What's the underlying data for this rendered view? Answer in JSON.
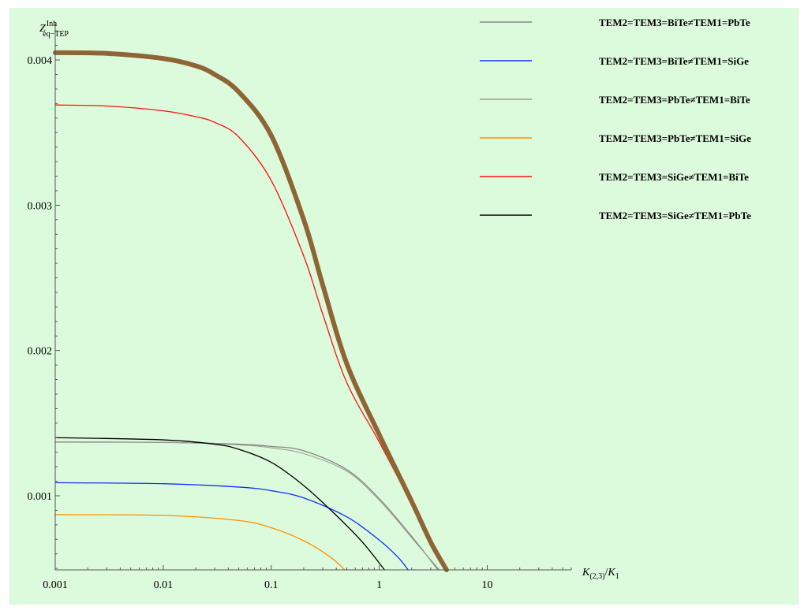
{
  "chart_data": {
    "type": "line",
    "xscale": "log",
    "xlim": [
      0.001,
      60
    ],
    "ylim": [
      0.00049,
      0.00425
    ],
    "xticks": [
      {
        "value": 0.001,
        "label": "0.001"
      },
      {
        "value": 0.01,
        "label": "0.01"
      },
      {
        "value": 0.1,
        "label": "0.1"
      },
      {
        "value": 1,
        "label": "1"
      },
      {
        "value": 10,
        "label": "10"
      }
    ],
    "yticks": [
      {
        "value": 0.001,
        "label": "0.001"
      },
      {
        "value": 0.002,
        "label": "0.002"
      },
      {
        "value": 0.003,
        "label": "0.003"
      },
      {
        "value": 0.004,
        "label": "0.004"
      }
    ],
    "xlabel": {
      "main": "K",
      "sub": "(2,3)",
      "sep": "/",
      "main2": "K",
      "sub2": "1"
    },
    "ylabel": {
      "main": "Z",
      "sup": "Inh",
      "sub": "eq−TEP"
    },
    "grid": false,
    "legend_position": "top-right",
    "series": [
      {
        "name": "TEM2=TEM3=BiTe≠TEM1=PbTe",
        "color": "#858585",
        "width": 1.3,
        "x": [
          0.001,
          0.01,
          0.05,
          0.1,
          0.2,
          0.5,
          1,
          2,
          3.5
        ],
        "y": [
          0.00137,
          0.001367,
          0.001355,
          0.00134,
          0.00131,
          0.00118,
          0.00098,
          0.00072,
          0.00049
        ]
      },
      {
        "name": "TEM2=TEM3=BiTe≠TEM1=SiGe",
        "color": "#1030ff",
        "width": 1.3,
        "x": [
          0.001,
          0.01,
          0.05,
          0.1,
          0.2,
          0.5,
          1,
          1.5,
          1.85
        ],
        "y": [
          0.00109,
          0.001083,
          0.00106,
          0.001035,
          0.000985,
          0.000855,
          0.000695,
          0.000575,
          0.00049
        ]
      },
      {
        "name": "TEM2=TEM3=PbTe≠TEM1=BiTe",
        "color": "#9a9a8c",
        "width": 1.0,
        "x": [
          0.001,
          0.01,
          0.05,
          0.1,
          0.2,
          0.5,
          1,
          2,
          3.6
        ],
        "y": [
          0.001372,
          0.001368,
          0.00135,
          0.00133,
          0.00129,
          0.00117,
          0.00097,
          0.00071,
          0.00049
        ]
      },
      {
        "name": "TEM2=TEM3=PbTe≠TEM1=SiGe",
        "color": "#ff9000",
        "width": 1.3,
        "x": [
          0.001,
          0.01,
          0.05,
          0.1,
          0.2,
          0.35,
          0.48
        ],
        "y": [
          0.00087,
          0.000865,
          0.00083,
          0.00078,
          0.00069,
          0.00058,
          0.00049
        ]
      },
      {
        "name": "TEM2=TEM3=SiGe≠TEM1=BiTe",
        "color": "#ff1010",
        "width": 1.3,
        "x": [
          0.001,
          0.003,
          0.01,
          0.02,
          0.03,
          0.05,
          0.1,
          0.2,
          0.3,
          0.5,
          1,
          2,
          3,
          4.1
        ],
        "y": [
          0.00369,
          0.003683,
          0.00365,
          0.00361,
          0.00357,
          0.00347,
          0.00317,
          0.00265,
          0.00225,
          0.00178,
          0.00137,
          0.00094,
          0.00066,
          0.00049
        ]
      },
      {
        "name": "TEM2=TEM3=SiGe≠TEM1=PbTe",
        "color": "#000000",
        "width": 1.3,
        "x": [
          0.001,
          0.01,
          0.03,
          0.05,
          0.1,
          0.2,
          0.4,
          0.7,
          1.12
        ],
        "y": [
          0.0014,
          0.001385,
          0.001355,
          0.00132,
          0.00123,
          0.00107,
          0.000865,
          0.00068,
          0.00049
        ]
      },
      {
        "name": "",
        "color": "#8f6535",
        "width": 6,
        "x": [
          0.001,
          0.003,
          0.01,
          0.02,
          0.03,
          0.05,
          0.1,
          0.2,
          0.3,
          0.5,
          1,
          2,
          3,
          4.2
        ],
        "y": [
          0.00405,
          0.004045,
          0.00401,
          0.00396,
          0.0039,
          0.00378,
          0.00348,
          0.0029,
          0.00245,
          0.00191,
          0.00142,
          0.00096,
          0.00068,
          0.00049
        ]
      }
    ]
  },
  "legend_entries": [
    {
      "label": "TEM2=TEM3=BiTe≠TEM1=PbTe",
      "color": "#858585"
    },
    {
      "label": "TEM2=TEM3=BiTe≠TEM1=SiGe",
      "color": "#1030ff"
    },
    {
      "label": "TEM2=TEM3=PbTe≠TEM1=BiTe",
      "color": "#9a9a8c"
    },
    {
      "label": "TEM2=TEM3=PbTe≠TEM1=SiGe",
      "color": "#ff9000"
    },
    {
      "label": "TEM2=TEM3=SiGe≠TEM1=BiTe",
      "color": "#ff1010"
    },
    {
      "label": "TEM2=TEM3=SiGe≠TEM1=PbTe",
      "color": "#000000"
    }
  ]
}
